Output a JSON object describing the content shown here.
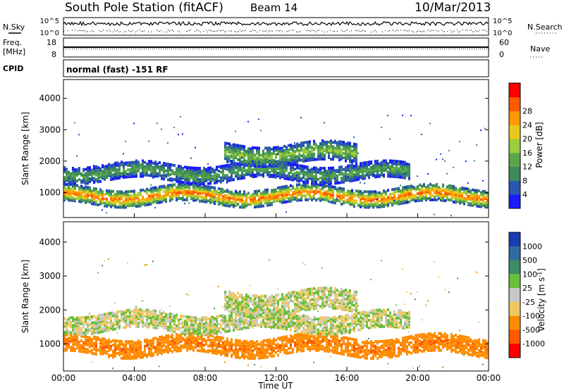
{
  "header": {
    "station": "South Pole Station (fitACF)",
    "beam": "Beam 14",
    "date": "10/Mar/2013"
  },
  "side_labels": {
    "nsky": "N.Sky",
    "freq_line1": "Freq.",
    "freq_line2": "[MHz]",
    "cpid": "CPID",
    "nsearch": "N.Search",
    "nave": "Nave"
  },
  "strip_ticks": {
    "sky_top": "10^5",
    "sky_bottom": "10^0",
    "search_top": "10^5",
    "search_bottom": "10^0",
    "freq_top": "18",
    "freq_bottom": "8",
    "nave_top": "60",
    "nave_bottom": "0"
  },
  "cpid_text": "normal (fast) -151 RF",
  "chart_data": [
    {
      "type": "heatmap",
      "panel": "power",
      "ylabel": "Slant Range [km]",
      "yticks": [
        "1000",
        "2000",
        "3000",
        "4000"
      ],
      "ylim": [
        200,
        4600
      ],
      "xlim": [
        0,
        24
      ],
      "colorbar": {
        "label": "Power [dB]",
        "ticks": [
          "4",
          "8",
          "12",
          "16",
          "20",
          "24",
          "28"
        ],
        "colors": [
          "#1a1aff",
          "#2a55b0",
          "#3d8a5a",
          "#5aa64a",
          "#9ccd3a",
          "#e8c81e",
          "#ff9900",
          "#ff5a00",
          "#ff0000"
        ]
      },
      "bands": [
        {
          "name": "low",
          "hour_start": 0,
          "hour_end": 24,
          "range_center": 850,
          "range_width": 500,
          "power_peak": 30
        },
        {
          "name": "mid",
          "hour_start": 0,
          "hour_end": 19.5,
          "range_center": 1600,
          "range_width": 500,
          "power_peak": 14
        },
        {
          "name": "high",
          "hour_start": 9,
          "hour_end": 16.5,
          "range_center": 2200,
          "range_width": 600,
          "power_peak": 18
        }
      ]
    },
    {
      "type": "heatmap",
      "panel": "velocity",
      "ylabel": "Slant Range [km]",
      "yticks": [
        "1000",
        "2000",
        "3000",
        "4000"
      ],
      "ylim": [
        200,
        4600
      ],
      "xlim": [
        0,
        24
      ],
      "xticks": [
        "00:00",
        "04:00",
        "08:00",
        "12:00",
        "16:00",
        "20:00",
        "00:00"
      ],
      "xlabel": "Time UT",
      "colorbar": {
        "label": "Velocity [m s^-1]",
        "ticks": [
          "1000",
          "500",
          "100",
          "25",
          "-25",
          "-100",
          "-500",
          "-1000"
        ],
        "colors": [
          "#1a3cb4",
          "#2d6ba0",
          "#3c8c64",
          "#6abf3c",
          "#c8c8c8",
          "#f0c860",
          "#ff8c00",
          "#ff5a00",
          "#ff0000"
        ]
      },
      "bands": [
        {
          "name": "low",
          "hour_start": 0,
          "hour_end": 24,
          "range_center": 900,
          "range_width": 500,
          "velocity": -300
        },
        {
          "name": "mid",
          "hour_start": 0,
          "hour_end": 19.5,
          "range_center": 1600,
          "range_width": 500,
          "velocity": 0
        },
        {
          "name": "high",
          "hour_start": 9,
          "hour_end": 16.5,
          "range_center": 2200,
          "range_width": 600,
          "velocity": 0
        }
      ]
    }
  ]
}
